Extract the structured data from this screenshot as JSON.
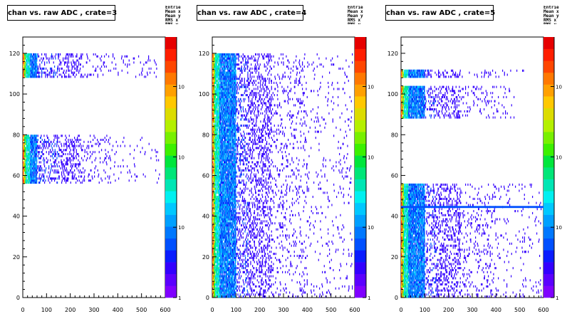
{
  "chart_data": [
    {
      "type": "heatmap",
      "title": "chan vs. raw ADC , crate=3",
      "xlabel": "",
      "ylabel": "",
      "xlim": [
        0,
        600
      ],
      "ylim": [
        0,
        128
      ],
      "xticks": [
        "0",
        "100",
        "200",
        "300",
        "400",
        "500",
        "600"
      ],
      "yticks": [
        "0",
        "20",
        "40",
        "60",
        "80",
        "100",
        "120"
      ],
      "z_scale": "log",
      "palette_labels": [
        "1",
        "10",
        "10",
        "10"
      ],
      "channel_bands": [
        [
          56,
          80
        ],
        [
          108,
          120
        ]
      ],
      "max_adc_by_band": [
        [
          56,
          80,
          580
        ],
        [
          108,
          120,
          580
        ]
      ],
      "hot_adc_range": [
        0,
        110
      ],
      "dense_adc_end": 60
    },
    {
      "type": "heatmap",
      "title": "chan vs. raw ADC , crate=4",
      "xlabel": "",
      "ylabel": "",
      "xlim": [
        0,
        600
      ],
      "ylim": [
        0,
        128
      ],
      "xticks": [
        "0",
        "100",
        "200",
        "300",
        "400",
        "500",
        "600"
      ],
      "yticks": [
        "0",
        "20",
        "40",
        "60",
        "80",
        "100",
        "120"
      ],
      "z_scale": "log",
      "palette_labels": [
        "1",
        "10",
        "10",
        "10"
      ],
      "channel_bands": [
        [
          0,
          120
        ]
      ],
      "max_adc_by_band": [
        [
          0,
          120,
          590
        ]
      ],
      "hot_adc_range": [
        0,
        110
      ],
      "dense_adc_end": 100
    },
    {
      "type": "heatmap",
      "title": "chan vs. raw ADC , crate=5",
      "xlabel": "",
      "ylabel": "",
      "xlim": [
        0,
        600
      ],
      "ylim": [
        0,
        128
      ],
      "xticks": [
        "0",
        "100",
        "200",
        "300",
        "400",
        "500",
        "600"
      ],
      "yticks": [
        "0",
        "20",
        "40",
        "60",
        "80",
        "100",
        "120"
      ],
      "z_scale": "log",
      "palette_labels": [
        "1",
        "10",
        "10",
        "10"
      ],
      "channel_bands": [
        [
          0,
          56
        ],
        [
          88,
          104
        ],
        [
          108,
          112
        ]
      ],
      "max_adc_by_band": [
        [
          0,
          56,
          590
        ],
        [
          88,
          104,
          480
        ],
        [
          108,
          112,
          590
        ]
      ],
      "hot_adc_range": [
        0,
        110
      ],
      "dense_adc_end": 100,
      "hot_channel_line": {
        "channel": 44,
        "adc_end": 600
      }
    }
  ],
  "stats_glyph": "Entries Mean x Mean y RMS x RMS y"
}
